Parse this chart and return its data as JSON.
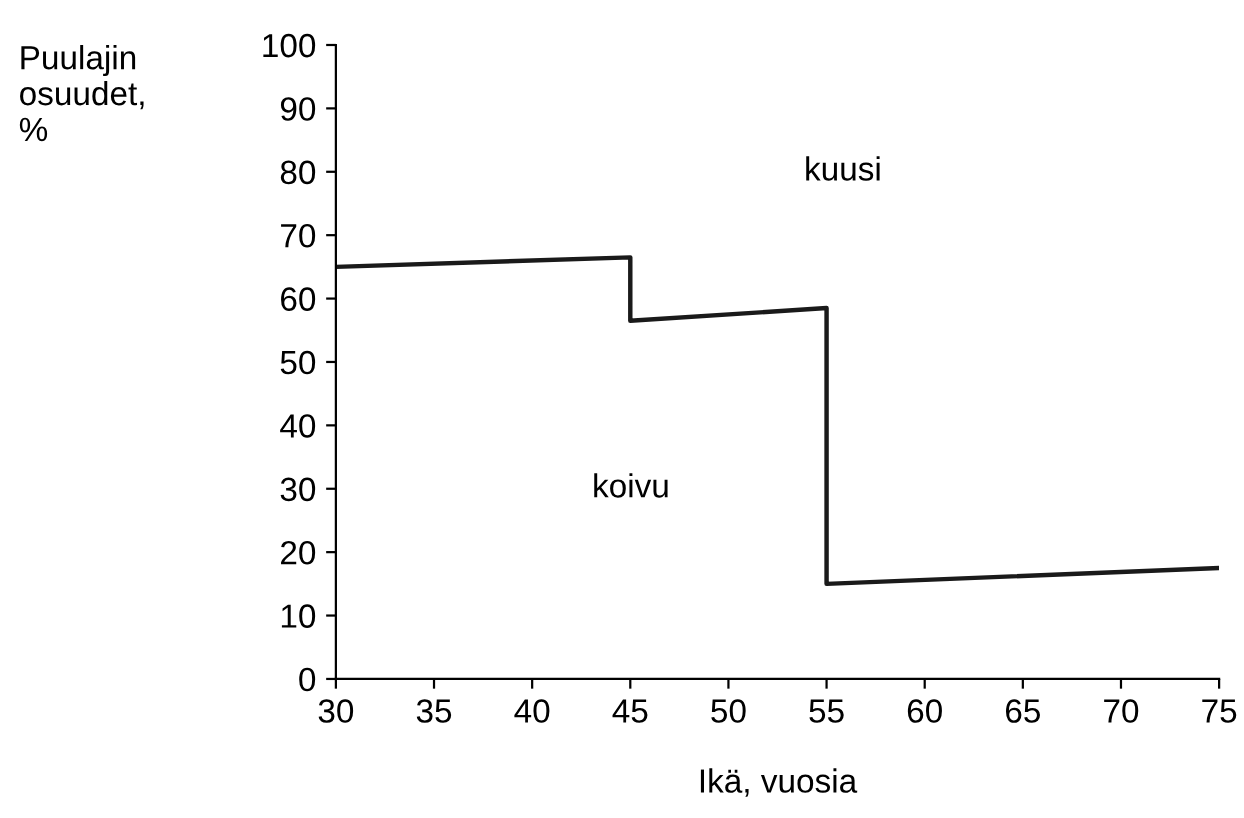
{
  "chart_data": {
    "type": "line",
    "x": [
      30,
      45,
      45,
      55,
      55,
      75
    ],
    "values": [
      65,
      66.5,
      56.5,
      58.5,
      15,
      17.5
    ],
    "color": "#1a1a1a",
    "xlabel": "Ikä, vuosia",
    "ylabel": "Puulajin\nosuudet,\n%",
    "xlim": [
      30,
      75
    ],
    "ylim": [
      0,
      100
    ],
    "xticks": [
      30,
      35,
      40,
      45,
      50,
      55,
      60,
      65,
      70,
      75
    ],
    "yticks": [
      0,
      10,
      20,
      30,
      40,
      50,
      60,
      70,
      80,
      90,
      100
    ],
    "annotations": [
      "kuusi",
      "koivu"
    ],
    "grid": false,
    "legend": false
  }
}
